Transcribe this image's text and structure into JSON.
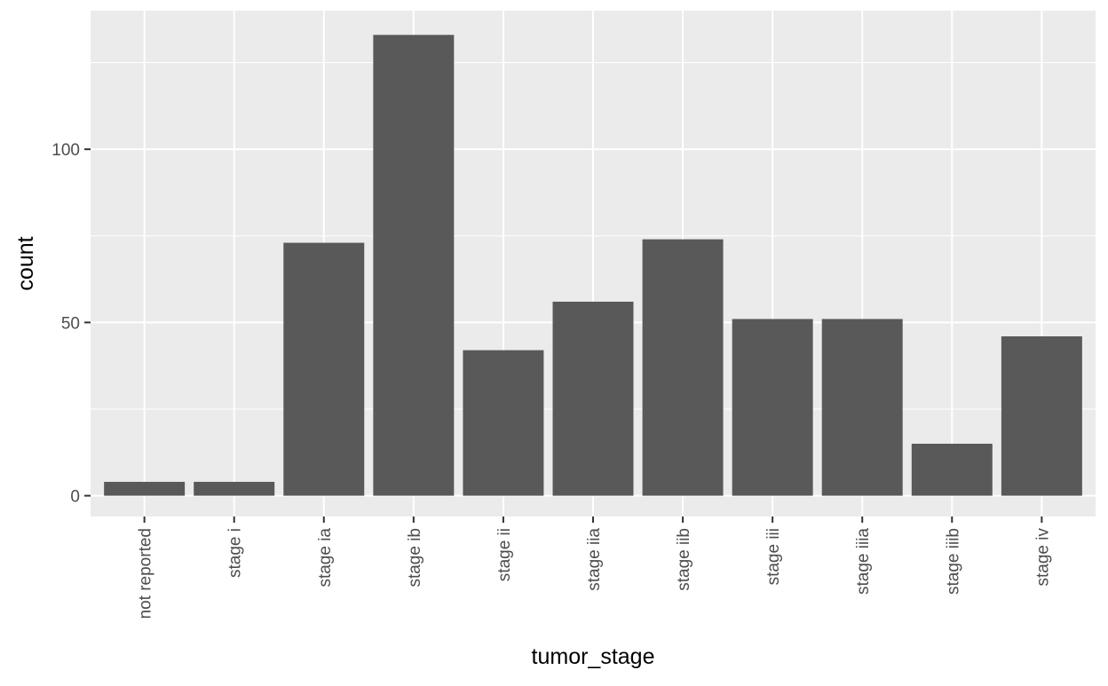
{
  "chart_data": {
    "type": "bar",
    "title": "",
    "xlabel": "tumor_stage",
    "ylabel": "count",
    "categories": [
      "not reported",
      "stage i",
      "stage ia",
      "stage ib",
      "stage ii",
      "stage iia",
      "stage iib",
      "stage iii",
      "stage iiia",
      "stage iiib",
      "stage iv"
    ],
    "values": [
      4,
      4,
      73,
      133,
      42,
      56,
      74,
      51,
      51,
      15,
      46
    ],
    "ylim": [
      -6,
      140
    ],
    "y_ticks": [
      0,
      50,
      100
    ],
    "y_tick_labels": [
      "0",
      "50",
      "100"
    ],
    "grid": true,
    "legend": "none",
    "colors": {
      "bar": "#595959",
      "panel": "#EBEBEB",
      "grid": "#FFFFFF",
      "tick_text": "#4D4D4D",
      "axis_title": "#000000"
    }
  }
}
